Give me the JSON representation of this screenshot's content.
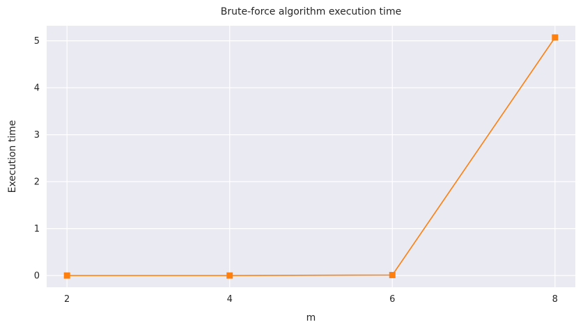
{
  "chart_data": {
    "type": "line",
    "title": "Brute-force algorithm execution time",
    "xlabel": "m",
    "ylabel": "Execution time",
    "x": [
      2,
      4,
      6,
      8
    ],
    "series": [
      {
        "values": [
          0.0,
          0.0,
          0.01,
          5.07
        ],
        "color": "#ff7f0e",
        "marker": "square"
      }
    ],
    "xticks": [
      "2",
      "4",
      "6",
      "8"
    ],
    "yticks": [
      "0",
      "1",
      "2",
      "3",
      "4",
      "5"
    ],
    "xlim": [
      1.75,
      8.25
    ],
    "ylim": [
      -0.25,
      5.32
    ],
    "grid": true,
    "background": "#eaeaf2",
    "grid_color": "#ffffff"
  }
}
